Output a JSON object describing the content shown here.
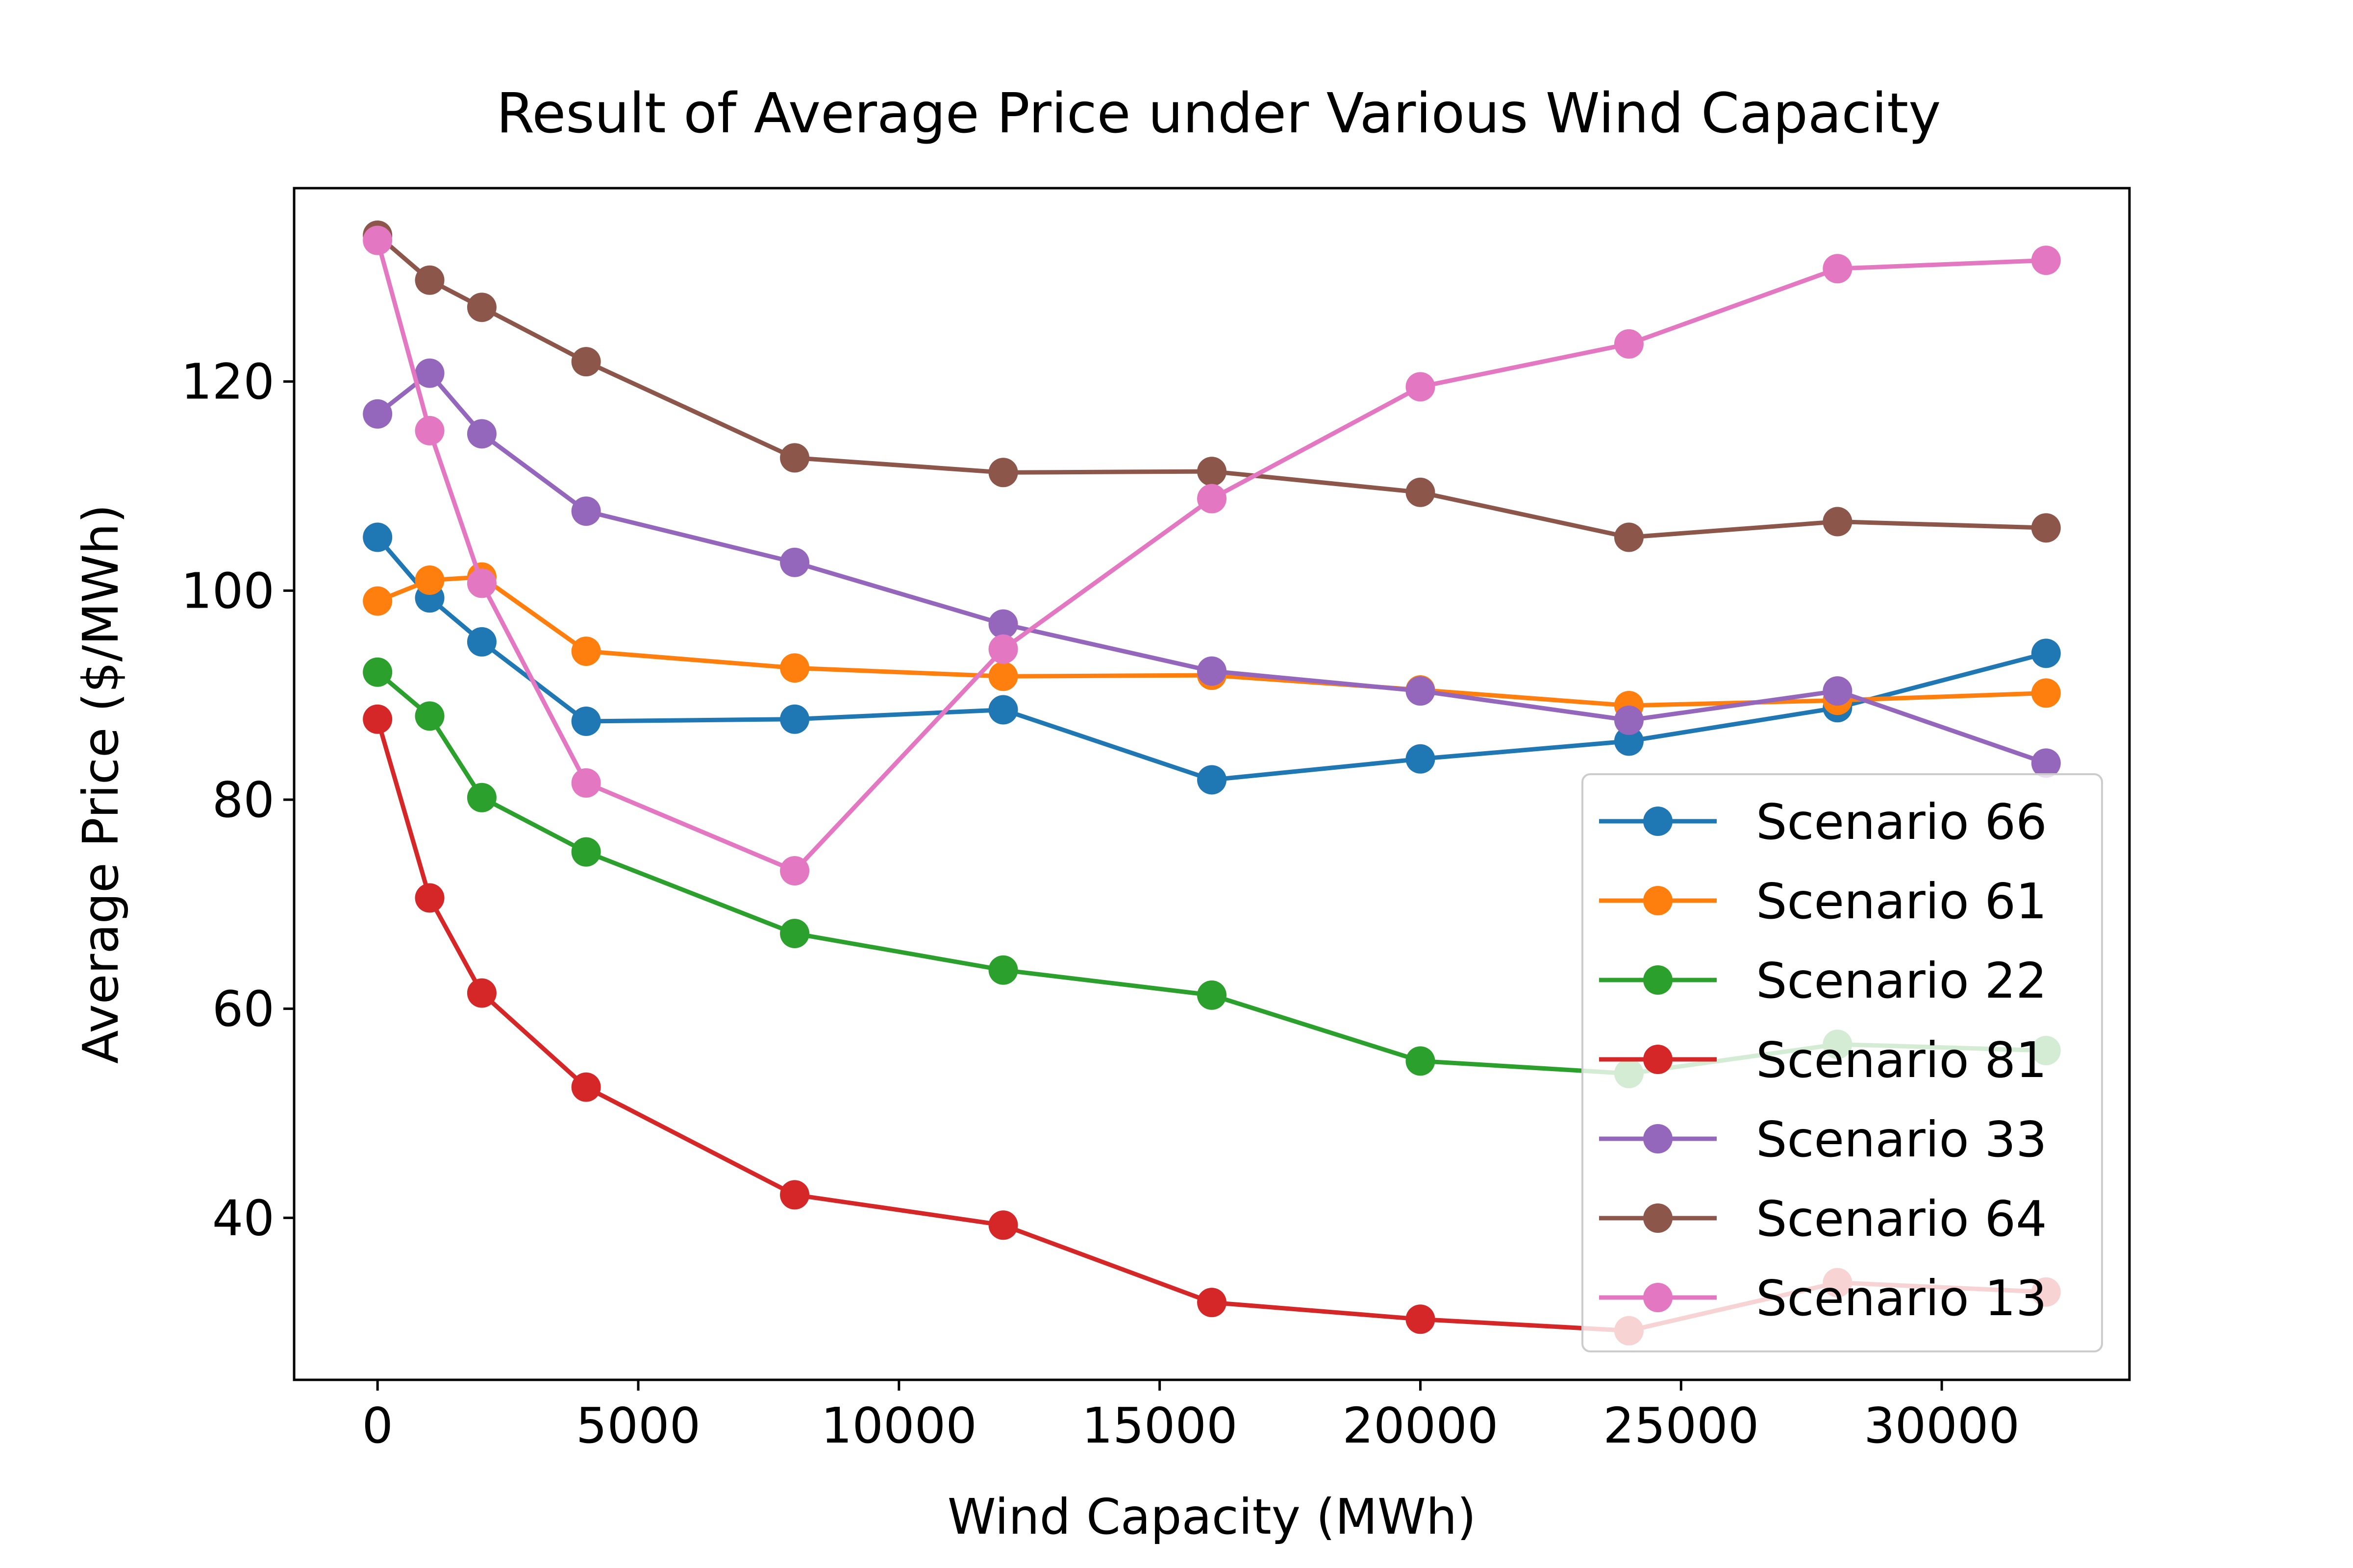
{
  "chart_data": {
    "type": "line",
    "title": "Result of Average Price under Various Wind Capacity",
    "xlabel": "Wind Capacity (MWh)",
    "ylabel": "Average Price ($/MWh)",
    "xlim": [
      -1600,
      33600
    ],
    "ylim": [
      24.5,
      138.5
    ],
    "xticks": [
      0,
      5000,
      10000,
      15000,
      20000,
      25000,
      30000
    ],
    "yticks": [
      40,
      60,
      80,
      100,
      120
    ],
    "grid": false,
    "legend_position": "lower-right",
    "x": [
      0,
      1000,
      2000,
      4000,
      8000,
      12000,
      16000,
      20000,
      24000,
      28000,
      32000
    ],
    "series": [
      {
        "name": "Scenario 66",
        "color": "#1f77b4",
        "values": [
          105.1,
          99.3,
          95.1,
          87.5,
          87.7,
          88.6,
          81.9,
          83.9,
          85.6,
          88.8,
          94.0
        ]
      },
      {
        "name": "Scenario 61",
        "color": "#ff7f0e",
        "values": [
          99.0,
          101.0,
          101.3,
          94.2,
          92.6,
          91.8,
          91.9,
          90.5,
          89.0,
          89.5,
          90.2
        ]
      },
      {
        "name": "Scenario 22",
        "color": "#2ca02c",
        "values": [
          92.2,
          88.0,
          80.2,
          75.0,
          67.2,
          63.7,
          61.3,
          55.0,
          53.8,
          56.6,
          56.0
        ]
      },
      {
        "name": "Scenario 81",
        "color": "#d62728",
        "values": [
          87.7,
          70.6,
          61.5,
          52.5,
          42.2,
          39.3,
          31.9,
          30.3,
          29.2,
          33.8,
          32.9
        ]
      },
      {
        "name": "Scenario 33",
        "color": "#9467bd",
        "values": [
          116.9,
          120.8,
          115.0,
          107.6,
          102.7,
          96.8,
          92.3,
          90.4,
          87.6,
          90.4,
          83.5
        ]
      },
      {
        "name": "Scenario 64",
        "color": "#8c564b",
        "values": [
          134.0,
          129.7,
          127.1,
          121.9,
          112.7,
          111.3,
          111.4,
          109.4,
          105.1,
          106.6,
          106.0
        ]
      },
      {
        "name": "Scenario 13",
        "color": "#e377c2",
        "values": [
          133.5,
          115.3,
          100.7,
          81.6,
          73.2,
          94.4,
          108.8,
          119.5,
          123.6,
          130.8,
          131.6
        ]
      }
    ]
  }
}
